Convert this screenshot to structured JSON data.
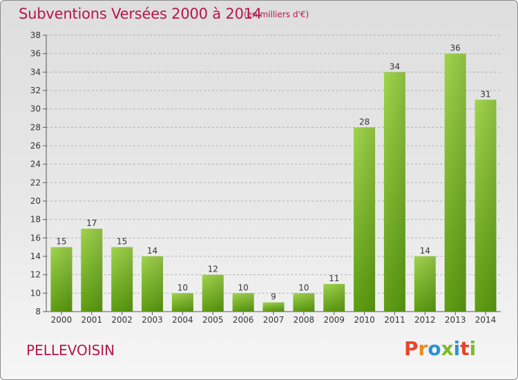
{
  "header": {
    "title": "Subventions Versées 2000 à 2014",
    "subtitle": "(en milliers d'€)"
  },
  "footer": {
    "commune": "PELLEVOISIN",
    "logo": [
      "P",
      "r",
      "o",
      "x",
      "i",
      "t",
      "i"
    ]
  },
  "colors": {
    "title": "#b5164a",
    "bar_top": "#9fd44b",
    "bar_bottom": "#5e9e12",
    "grid": "#b0b0b0"
  },
  "chart_data": {
    "type": "bar",
    "categories": [
      "2000",
      "2001",
      "2002",
      "2003",
      "2004",
      "2005",
      "2006",
      "2007",
      "2008",
      "2009",
      "2010",
      "2011",
      "2012",
      "2013",
      "2014"
    ],
    "values": [
      15,
      17,
      15,
      14,
      10,
      12,
      10,
      9,
      10,
      11,
      28,
      34,
      14,
      36,
      31
    ],
    "ylim": [
      8,
      38
    ],
    "yticks": [
      8,
      10,
      12,
      14,
      16,
      18,
      20,
      22,
      24,
      26,
      28,
      30,
      32,
      34,
      36,
      38
    ],
    "grid": true,
    "data_labels": true,
    "title": "Subventions Versées 2000 à 2014",
    "xlabel": "",
    "ylabel": ""
  }
}
